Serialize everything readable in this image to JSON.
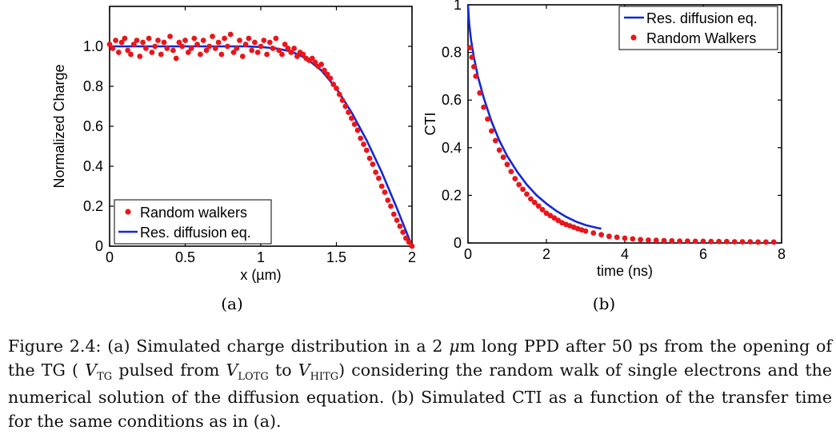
{
  "colors": {
    "simulation": "#e8161b",
    "model": "#1228d8"
  },
  "sublabels": {
    "a": "(a)",
    "b": "(b)"
  },
  "caption": {
    "prefix": "Figure 2.4: (a) Simulated charge distribution in a 2 ",
    "mu": "μ",
    "part2": "m long PPD after 50 ps from the opening of the TG ( ",
    "v1": "V",
    "v1_sub": "TG",
    "part3": " pulsed from ",
    "v2": "V",
    "v2_sub": "LOTG",
    "part4": " to ",
    "v3": "V",
    "v3_sub": "HITG",
    "part5": ") considering the random walk of single electrons and the numerical solution of the diffusion equation. (b) Simulated CTI as a function of the transfer time for the same conditions as in (a)."
  },
  "chart_data": [
    {
      "type": "scatter",
      "xlabel": "x (µm)",
      "ylabel": "Normalized Charge",
      "xlim": [
        0,
        2
      ],
      "ylim": [
        0,
        1.2
      ],
      "xticks": [
        0,
        0.5,
        1,
        1.5,
        2
      ],
      "xtick_labels": [
        "0",
        "0.5",
        "1",
        "1.5",
        "2"
      ],
      "yticks": [
        0,
        0.2,
        0.4,
        0.6,
        0.8,
        1.0
      ],
      "ytick_labels": [
        "0",
        "0.2",
        "0.4",
        "0.6",
        "0.8",
        "1.0"
      ],
      "legend_position": "bottom-left",
      "series": [
        {
          "name": "Random walkers",
          "kind": "points",
          "x": [
            0.0,
            0.02,
            0.04,
            0.06,
            0.08,
            0.1,
            0.12,
            0.14,
            0.16,
            0.18,
            0.2,
            0.22,
            0.24,
            0.26,
            0.28,
            0.3,
            0.32,
            0.34,
            0.36,
            0.38,
            0.4,
            0.42,
            0.44,
            0.46,
            0.48,
            0.5,
            0.52,
            0.54,
            0.56,
            0.58,
            0.6,
            0.62,
            0.64,
            0.66,
            0.68,
            0.7,
            0.72,
            0.74,
            0.76,
            0.78,
            0.8,
            0.82,
            0.84,
            0.86,
            0.88,
            0.9,
            0.92,
            0.94,
            0.96,
            0.98,
            1.0,
            1.02,
            1.04,
            1.06,
            1.08,
            1.1,
            1.12,
            1.14,
            1.16,
            1.18,
            1.2,
            1.22,
            1.24,
            1.26,
            1.28,
            1.3,
            1.32,
            1.34,
            1.36,
            1.38,
            1.4,
            1.42,
            1.44,
            1.46,
            1.48,
            1.5,
            1.52,
            1.54,
            1.56,
            1.58,
            1.6,
            1.62,
            1.64,
            1.66,
            1.68,
            1.7,
            1.72,
            1.74,
            1.76,
            1.78,
            1.8,
            1.82,
            1.84,
            1.86,
            1.88,
            1.9,
            1.92,
            1.94,
            1.96,
            1.98,
            2.0
          ],
          "y": [
            1.01,
            0.99,
            1.03,
            0.97,
            1.02,
            1.04,
            0.98,
            0.96,
            1.01,
            1.03,
            0.95,
            1.02,
            0.99,
            1.04,
            0.97,
            1.0,
            1.03,
            0.96,
            1.02,
            0.99,
            1.05,
            0.98,
            0.94,
            1.02,
            1.0,
            1.03,
            0.97,
            0.99,
            1.04,
            1.01,
            0.96,
            1.03,
            0.98,
            1.0,
            1.05,
            0.99,
            1.02,
            0.96,
            1.04,
            1.0,
            1.06,
            0.97,
            0.99,
            1.03,
            0.95,
            1.01,
            1.04,
            0.98,
            1.02,
            0.97,
            1.0,
            1.03,
            0.96,
            1.02,
            0.99,
            1.04,
            0.98,
            0.96,
            1.01,
            0.99,
            0.97,
            0.99,
            0.95,
            0.97,
            0.96,
            0.94,
            0.93,
            0.94,
            0.92,
            0.9,
            0.91,
            0.88,
            0.86,
            0.84,
            0.81,
            0.79,
            0.76,
            0.73,
            0.7,
            0.67,
            0.64,
            0.61,
            0.58,
            0.54,
            0.51,
            0.48,
            0.44,
            0.41,
            0.37,
            0.34,
            0.3,
            0.27,
            0.23,
            0.2,
            0.16,
            0.13,
            0.1,
            0.07,
            0.04,
            0.02,
            0.0
          ]
        },
        {
          "name": "Res. diffusion eq.",
          "kind": "line",
          "x": [
            0,
            0.1,
            0.2,
            0.3,
            0.4,
            0.5,
            0.6,
            0.7,
            0.8,
            0.9,
            1.0,
            1.1,
            1.2,
            1.3,
            1.4,
            1.5,
            1.6,
            1.7,
            1.8,
            1.9,
            2.0
          ],
          "y": [
            1.0,
            1.0,
            1.0,
            1.0,
            1.0,
            1.0,
            1.0,
            1.0,
            1.0,
            1.0,
            0.997,
            0.99,
            0.975,
            0.94,
            0.88,
            0.79,
            0.67,
            0.53,
            0.37,
            0.19,
            0.0
          ]
        }
      ]
    },
    {
      "type": "scatter",
      "xlabel": "time (ns)",
      "ylabel": "CTI",
      "xlim": [
        0,
        8
      ],
      "ylim": [
        0,
        1
      ],
      "xticks": [
        0,
        2,
        4,
        6,
        8
      ],
      "xtick_labels": [
        "0",
        "2",
        "4",
        "6",
        "8"
      ],
      "yticks": [
        0,
        0.2,
        0.4,
        0.6,
        0.8,
        1
      ],
      "ytick_labels": [
        "0",
        "0.2",
        "0.4",
        "0.6",
        "0.8",
        "1"
      ],
      "legend_position": "top-right",
      "series": [
        {
          "name": "Res. diffusion eq.",
          "kind": "line",
          "x": [
            0.0,
            0.03,
            0.08,
            0.15,
            0.25,
            0.4,
            0.6,
            0.8,
            1.0,
            1.25,
            1.5,
            1.75,
            2.0,
            2.25,
            2.5,
            2.75,
            3.0,
            3.25,
            3.4
          ],
          "y": [
            1.0,
            0.92,
            0.85,
            0.78,
            0.7,
            0.61,
            0.51,
            0.43,
            0.365,
            0.3,
            0.245,
            0.2,
            0.165,
            0.135,
            0.11,
            0.09,
            0.075,
            0.065,
            0.06
          ]
        },
        {
          "name": "Random Walkers",
          "kind": "points",
          "x": [
            0.05,
            0.1,
            0.15,
            0.2,
            0.3,
            0.4,
            0.5,
            0.6,
            0.7,
            0.8,
            0.9,
            1.0,
            1.1,
            1.2,
            1.3,
            1.4,
            1.5,
            1.6,
            1.7,
            1.8,
            1.9,
            2.0,
            2.1,
            2.2,
            2.3,
            2.4,
            2.5,
            2.6,
            2.7,
            2.8,
            2.9,
            3.0,
            3.2,
            3.4,
            3.6,
            3.8,
            4.0,
            4.2,
            4.4,
            4.6,
            4.8,
            5.0,
            5.2,
            5.4,
            5.6,
            5.8,
            6.0,
            6.2,
            6.4,
            6.6,
            6.8,
            7.0,
            7.2,
            7.4,
            7.6,
            7.8
          ],
          "y": [
            0.82,
            0.78,
            0.74,
            0.7,
            0.63,
            0.57,
            0.52,
            0.47,
            0.43,
            0.39,
            0.36,
            0.33,
            0.3,
            0.27,
            0.245,
            0.225,
            0.205,
            0.185,
            0.17,
            0.155,
            0.14,
            0.125,
            0.115,
            0.105,
            0.095,
            0.085,
            0.078,
            0.072,
            0.066,
            0.06,
            0.055,
            0.05,
            0.042,
            0.035,
            0.028,
            0.024,
            0.02,
            0.017,
            0.014,
            0.012,
            0.011,
            0.01,
            0.009,
            0.008,
            0.008,
            0.007,
            0.007,
            0.006,
            0.006,
            0.006,
            0.005,
            0.005,
            0.005,
            0.004,
            0.004,
            0.004
          ]
        }
      ]
    }
  ]
}
